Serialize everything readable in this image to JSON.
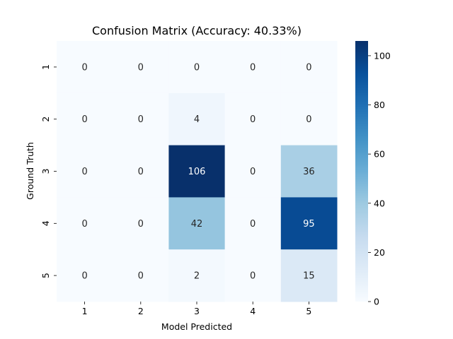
{
  "chart_data": {
    "type": "heatmap",
    "title": "Confusion Matrix (Accuracy: 40.33%)",
    "xlabel": "Model Predicted",
    "ylabel": "Ground Truth",
    "x_categories": [
      "1",
      "2",
      "3",
      "4",
      "5"
    ],
    "y_categories": [
      "1",
      "2",
      "3",
      "4",
      "5"
    ],
    "values": [
      [
        0,
        0,
        0,
        0,
        0
      ],
      [
        0,
        0,
        4,
        0,
        0
      ],
      [
        0,
        0,
        106,
        0,
        36
      ],
      [
        0,
        0,
        42,
        0,
        95
      ],
      [
        0,
        0,
        2,
        0,
        15
      ]
    ],
    "colorbar": {
      "min": 0,
      "max": 106,
      "ticks": [
        0,
        20,
        40,
        60,
        80,
        100
      ],
      "colormap": "Blues",
      "placement": "right"
    },
    "colors": {
      "low": "#f7fbff",
      "high": "#08306b"
    },
    "grid": false
  }
}
